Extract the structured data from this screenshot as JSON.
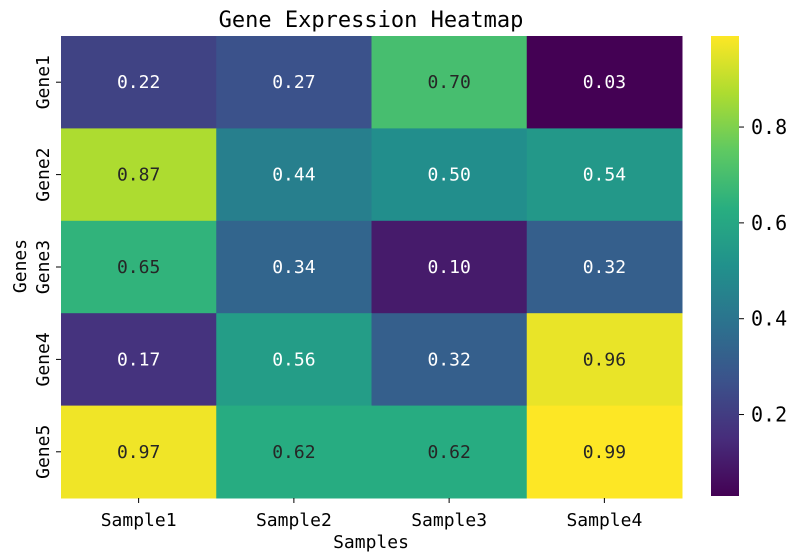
{
  "chart_data": {
    "type": "heatmap",
    "title": "Gene Expression Heatmap",
    "xlabel": "Samples",
    "ylabel": "Genes",
    "x_categories": [
      "Sample1",
      "Sample2",
      "Sample3",
      "Sample4"
    ],
    "y_categories": [
      "Gene1",
      "Gene2",
      "Gene3",
      "Gene4",
      "Gene5"
    ],
    "values": [
      [
        0.22,
        0.27,
        0.7,
        0.03
      ],
      [
        0.87,
        0.44,
        0.5,
        0.54
      ],
      [
        0.65,
        0.34,
        0.1,
        0.32
      ],
      [
        0.17,
        0.56,
        0.32,
        0.96
      ],
      [
        0.97,
        0.62,
        0.62,
        0.99
      ]
    ],
    "value_labels": [
      [
        "0.22",
        "0.27",
        "0.70",
        "0.03"
      ],
      [
        "0.87",
        "0.44",
        "0.50",
        "0.54"
      ],
      [
        "0.65",
        "0.34",
        "0.10",
        "0.32"
      ],
      [
        "0.17",
        "0.56",
        "0.32",
        "0.96"
      ],
      [
        "0.97",
        "0.62",
        "0.62",
        "0.99"
      ]
    ],
    "colormap": "viridis",
    "color_range": [
      0.03,
      0.99
    ],
    "colorbar_ticks": [
      0.2,
      0.4,
      0.6,
      0.8
    ],
    "colorbar_tick_labels": [
      "0.2",
      "0.4",
      "0.6",
      "0.8"
    ],
    "annotations_on": true,
    "grid": false
  }
}
